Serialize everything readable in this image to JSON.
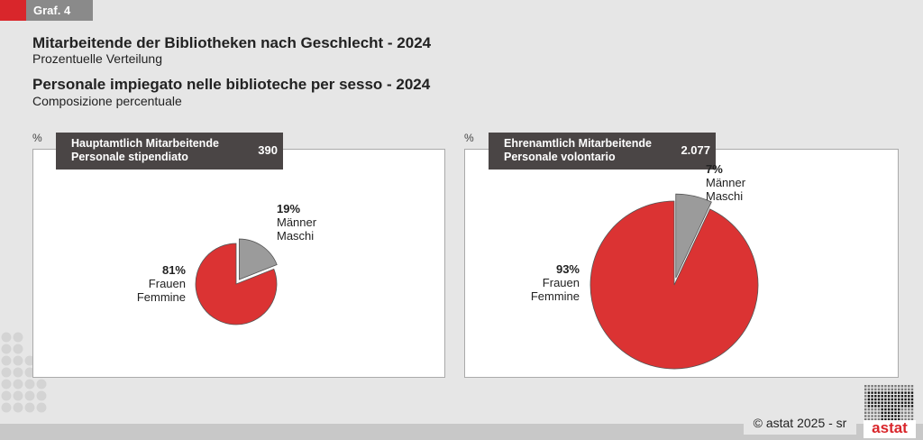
{
  "tag": "Graf. 4",
  "title_de": "Mitarbeitende der Bibliotheken nach Geschlecht - 2024",
  "subtitle_de": "Prozentuelle Verteilung",
  "title_it": "Personale impiegato nelle biblioteche per sesso - 2024",
  "subtitle_it": "Composizione percentuale",
  "unit": "%",
  "footer": "© astat 2025 - sr",
  "logo_text": "astat",
  "colors": {
    "women": "#db3333",
    "men": "#9b9b9b"
  },
  "chart_data": [
    {
      "type": "pie",
      "title_de": "Hauptamtlich Mitarbeitende",
      "title_it": "Personale stipendiato",
      "total": "390",
      "slices": [
        {
          "pct": "19%",
          "value": 19,
          "label_de": "Männer",
          "label_it": "Maschi"
        },
        {
          "pct": "81%",
          "value": 81,
          "label_de": "Frauen",
          "label_it": "Femmine"
        }
      ]
    },
    {
      "type": "pie",
      "title_de": "Ehrenamtlich Mitarbeitende",
      "title_it": "Personale volontario",
      "total": "2.077",
      "slices": [
        {
          "pct": "7%",
          "value": 7,
          "label_de": "Männer",
          "label_it": "Maschi"
        },
        {
          "pct": "93%",
          "value": 93,
          "label_de": "Frauen",
          "label_it": "Femmine"
        }
      ]
    }
  ]
}
